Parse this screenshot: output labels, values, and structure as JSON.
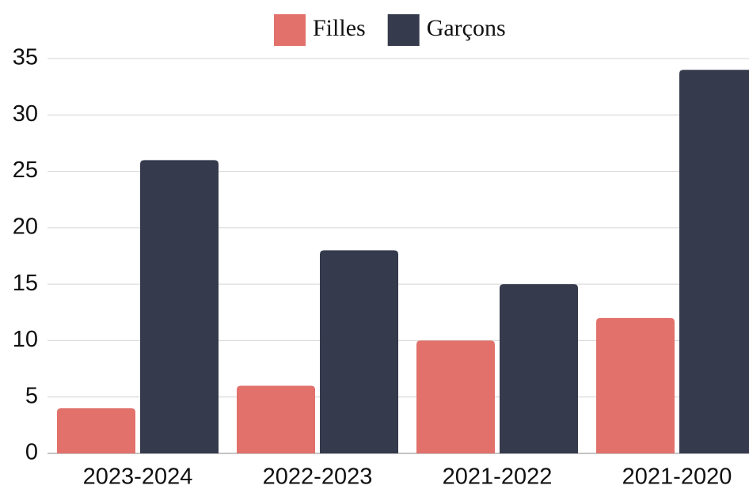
{
  "chart_data": {
    "type": "bar",
    "categories": [
      "2023-2024",
      "2022-2023",
      "2021-2022",
      "2021-2020"
    ],
    "series": [
      {
        "name": "Filles",
        "color": "#e2716c",
        "values": [
          4,
          6,
          10,
          12
        ]
      },
      {
        "name": "Garçons",
        "color": "#353a4c",
        "values": [
          26,
          18,
          15,
          34
        ]
      }
    ],
    "ylim": [
      0,
      35
    ],
    "yticks": [
      0,
      5,
      10,
      15,
      20,
      25,
      30,
      35
    ],
    "grid": true,
    "legend": "top"
  }
}
